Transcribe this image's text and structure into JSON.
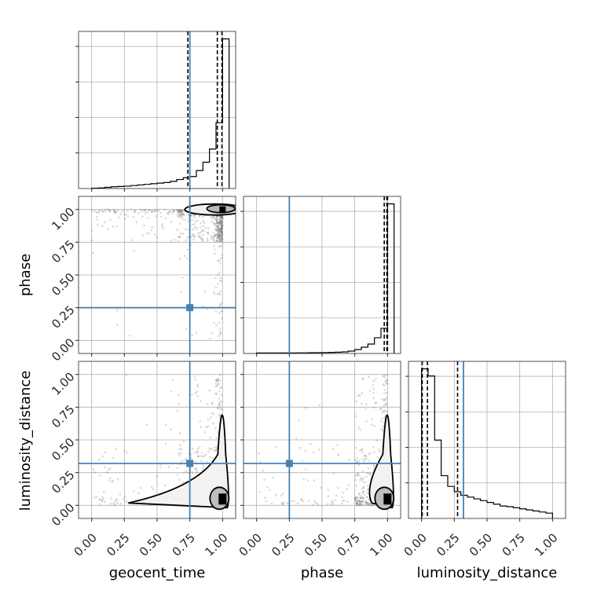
{
  "chart_data": {
    "type": "corner",
    "parameters": [
      "geocent_time",
      "phase",
      "luminosity_distance"
    ],
    "axis_labels": {
      "x": [
        "geocent_time",
        "phase",
        "luminosity_distance"
      ],
      "y": [
        "phase",
        "luminosity_distance"
      ]
    },
    "tick_values": [
      0.0,
      0.25,
      0.5,
      0.75,
      1.0
    ],
    "tick_labels": [
      "0.00",
      "0.25",
      "0.50",
      "0.75",
      "1.00"
    ],
    "ranges": {
      "geocent_time": [
        -0.1,
        1.1
      ],
      "phase": [
        -0.1,
        1.1
      ],
      "luminosity_distance": [
        -0.1,
        1.1
      ]
    },
    "grid": true,
    "colors": {
      "truth": "#4682b4",
      "hist": "#000000",
      "points": "#555555"
    },
    "truths": {
      "geocent_time": 0.75,
      "phase": 0.25,
      "luminosity_distance": 0.32
    },
    "histograms": {
      "geocent_time": {
        "edges": [
          0.0,
          0.05,
          0.1,
          0.15,
          0.2,
          0.25,
          0.3,
          0.35,
          0.4,
          0.45,
          0.5,
          0.55,
          0.6,
          0.65,
          0.7,
          0.75,
          0.8,
          0.85,
          0.9,
          0.95,
          1.0,
          1.05
        ],
        "counts": [
          0.3,
          0.5,
          1,
          1.5,
          1.7,
          2,
          2.5,
          3,
          3.5,
          4,
          4.5,
          5,
          6,
          7.5,
          9,
          10,
          15,
          22,
          33,
          55,
          125
        ],
        "quantiles": [
          0.735,
          0.96,
          0.995
        ]
      },
      "phase": {
        "edges": [
          0.0,
          0.05,
          0.1,
          0.15,
          0.2,
          0.25,
          0.3,
          0.35,
          0.4,
          0.45,
          0.5,
          0.55,
          0.6,
          0.65,
          0.7,
          0.75,
          0.8,
          0.85,
          0.9,
          0.95,
          1.0,
          1.05
        ],
        "counts": [
          0.3,
          0.3,
          0.3,
          0.3,
          0.3,
          0.3,
          0.4,
          0.4,
          0.5,
          0.5,
          0.6,
          0.7,
          0.8,
          1,
          1.5,
          2.5,
          4,
          6,
          10,
          16,
          95
        ],
        "quantiles": [
          0.975,
          0.995,
          1.0
        ]
      },
      "luminosity_distance": {
        "edges": [
          0.0,
          0.05,
          0.1,
          0.15,
          0.2,
          0.25,
          0.3,
          0.35,
          0.4,
          0.45,
          0.5,
          0.55,
          0.6,
          0.65,
          0.7,
          0.75,
          0.8,
          0.85,
          0.9,
          0.95,
          1.0
        ],
        "counts": [
          42,
          40,
          22,
          12,
          9,
          7.5,
          6.5,
          6,
          5.5,
          5,
          4.5,
          4,
          3.5,
          3.3,
          3,
          2.7,
          2.4,
          2.1,
          1.8,
          1.5
        ],
        "quantiles": [
          0.005,
          0.045,
          0.275
        ]
      }
    }
  }
}
